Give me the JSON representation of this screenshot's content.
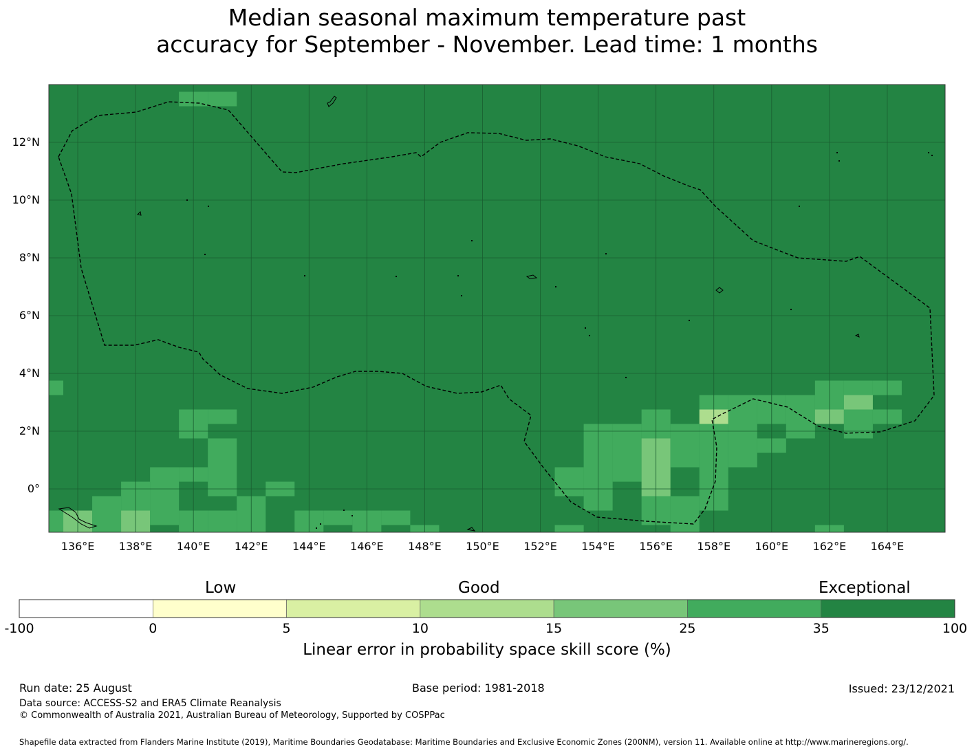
{
  "title_line1": "Median seasonal maximum temperature past",
  "title_line2": "accuracy for September - November. Lead time: 1 months",
  "map": {
    "lon_range": [
      135,
      166
    ],
    "lat_range": [
      -1.5,
      14
    ],
    "lon_labels": [
      "136°E",
      "138°E",
      "140°E",
      "142°E",
      "144°E",
      "146°E",
      "148°E",
      "150°E",
      "152°E",
      "154°E",
      "156°E",
      "158°E",
      "160°E",
      "162°E",
      "164°E"
    ],
    "lat_labels": [
      "12°N",
      "10°N",
      "8°N",
      "6°N",
      "4°N",
      "2°N",
      "0°"
    ],
    "colors": {
      "exceptional": "#238443",
      "c25_35": "#41ab5d",
      "c15_25": "#78c679",
      "c10_15": "#addd8e",
      "c5_10": "#d9f0a3",
      "c0_5": "#ffffcc",
      "below0": "#ffffff"
    },
    "patches": [
      {
        "lon": 140,
        "lat": 13.5,
        "cls": "c25_35"
      },
      {
        "lon": 141,
        "lat": 13.5,
        "cls": "c25_35"
      },
      {
        "lon": 135,
        "lat": 3.5,
        "cls": "c25_35"
      },
      {
        "lon": 140,
        "lat": 2.5,
        "cls": "c25_35"
      },
      {
        "lon": 141,
        "lat": 2.5,
        "cls": "c25_35"
      },
      {
        "lon": 140,
        "lat": 2.0,
        "cls": "c25_35"
      },
      {
        "lon": 141,
        "lat": 1.5,
        "cls": "c25_35"
      },
      {
        "lon": 141,
        "lat": 1.0,
        "cls": "c25_35"
      },
      {
        "lon": 140,
        "lat": 0.5,
        "cls": "c25_35"
      },
      {
        "lon": 141,
        "lat": 0.5,
        "cls": "c25_35"
      },
      {
        "lon": 139,
        "lat": 0.5,
        "cls": "c25_35"
      },
      {
        "lon": 138,
        "lat": 0.0,
        "cls": "c25_35"
      },
      {
        "lon": 139,
        "lat": 0.0,
        "cls": "c25_35"
      },
      {
        "lon": 141,
        "lat": 0.0,
        "cls": "c25_35"
      },
      {
        "lon": 143,
        "lat": 0.0,
        "cls": "c25_35"
      },
      {
        "lon": 137,
        "lat": -0.5,
        "cls": "c25_35"
      },
      {
        "lon": 138,
        "lat": -0.5,
        "cls": "c25_35"
      },
      {
        "lon": 139,
        "lat": -0.5,
        "cls": "c25_35"
      },
      {
        "lon": 142,
        "lat": -0.5,
        "cls": "c25_35"
      },
      {
        "lon": 135,
        "lat": -1.0,
        "cls": "c25_35"
      },
      {
        "lon": 136,
        "lat": -1.0,
        "cls": "c15_25"
      },
      {
        "lon": 137,
        "lat": -1.0,
        "cls": "c25_35"
      },
      {
        "lon": 138,
        "lat": -1.0,
        "cls": "c15_25"
      },
      {
        "lon": 139,
        "lat": -1.0,
        "cls": "c25_35"
      },
      {
        "lon": 140,
        "lat": -1.0,
        "cls": "c25_35"
      },
      {
        "lon": 141,
        "lat": -1.0,
        "cls": "c25_35"
      },
      {
        "lon": 142,
        "lat": -1.0,
        "cls": "c25_35"
      },
      {
        "lon": 144,
        "lat": -1.0,
        "cls": "c25_35"
      },
      {
        "lon": 145,
        "lat": -1.0,
        "cls": "c25_35"
      },
      {
        "lon": 146,
        "lat": -1.0,
        "cls": "c25_35"
      },
      {
        "lon": 147,
        "lat": -1.0,
        "cls": "c25_35"
      },
      {
        "lon": 135,
        "lat": -1.5,
        "cls": "c25_35"
      },
      {
        "lon": 136,
        "lat": -1.5,
        "cls": "c15_25"
      },
      {
        "lon": 137,
        "lat": -1.5,
        "cls": "c25_35"
      },
      {
        "lon": 138,
        "lat": -1.5,
        "cls": "c15_25"
      },
      {
        "lon": 140,
        "lat": -1.5,
        "cls": "c25_35"
      },
      {
        "lon": 141,
        "lat": -1.5,
        "cls": "c25_35"
      },
      {
        "lon": 142,
        "lat": -1.5,
        "cls": "c25_35"
      },
      {
        "lon": 144,
        "lat": -1.5,
        "cls": "c25_35"
      },
      {
        "lon": 146,
        "lat": -1.5,
        "cls": "c25_35"
      },
      {
        "lon": 148,
        "lat": -1.5,
        "cls": "c25_35"
      },
      {
        "lon": 153,
        "lat": -1.5,
        "cls": "c25_35"
      },
      {
        "lon": 157,
        "lat": -1.5,
        "cls": "c25_35"
      },
      {
        "lon": 162,
        "lat": -1.5,
        "cls": "c25_35"
      },
      {
        "lon": 156,
        "lat": 2.5,
        "cls": "c25_35"
      },
      {
        "lon": 158,
        "lat": 3.0,
        "cls": "c25_35"
      },
      {
        "lon": 159,
        "lat": 3.0,
        "cls": "c25_35"
      },
      {
        "lon": 160,
        "lat": 3.0,
        "cls": "c25_35"
      },
      {
        "lon": 161,
        "lat": 3.0,
        "cls": "c25_35"
      },
      {
        "lon": 162,
        "lat": 3.0,
        "cls": "c25_35"
      },
      {
        "lon": 162,
        "lat": 3.5,
        "cls": "c25_35"
      },
      {
        "lon": 163,
        "lat": 3.5,
        "cls": "c25_35"
      },
      {
        "lon": 164,
        "lat": 3.5,
        "cls": "c25_35"
      },
      {
        "lon": 163,
        "lat": 3.0,
        "cls": "c15_25"
      },
      {
        "lon": 158,
        "lat": 2.5,
        "cls": "c10_15"
      },
      {
        "lon": 159,
        "lat": 2.5,
        "cls": "c25_35"
      },
      {
        "lon": 160,
        "lat": 2.5,
        "cls": "c25_35"
      },
      {
        "lon": 161,
        "lat": 2.5,
        "cls": "c25_35"
      },
      {
        "lon": 162,
        "lat": 2.5,
        "cls": "c15_25"
      },
      {
        "lon": 163,
        "lat": 2.5,
        "cls": "c25_35"
      },
      {
        "lon": 164,
        "lat": 2.5,
        "cls": "c25_35"
      },
      {
        "lon": 163,
        "lat": 2.0,
        "cls": "c25_35"
      },
      {
        "lon": 154,
        "lat": 2.0,
        "cls": "c25_35"
      },
      {
        "lon": 155,
        "lat": 2.0,
        "cls": "c25_35"
      },
      {
        "lon": 156,
        "lat": 2.0,
        "cls": "c25_35"
      },
      {
        "lon": 157,
        "lat": 2.0,
        "cls": "c25_35"
      },
      {
        "lon": 158,
        "lat": 2.0,
        "cls": "c25_35"
      },
      {
        "lon": 159,
        "lat": 2.0,
        "cls": "c25_35"
      },
      {
        "lon": 161,
        "lat": 2.0,
        "cls": "c25_35"
      },
      {
        "lon": 154,
        "lat": 1.5,
        "cls": "c25_35"
      },
      {
        "lon": 155,
        "lat": 1.5,
        "cls": "c25_35"
      },
      {
        "lon": 156,
        "lat": 1.5,
        "cls": "c15_25"
      },
      {
        "lon": 157,
        "lat": 1.5,
        "cls": "c25_35"
      },
      {
        "lon": 158,
        "lat": 1.5,
        "cls": "c25_35"
      },
      {
        "lon": 159,
        "lat": 1.5,
        "cls": "c25_35"
      },
      {
        "lon": 160,
        "lat": 1.5,
        "cls": "c25_35"
      },
      {
        "lon": 154,
        "lat": 1.0,
        "cls": "c25_35"
      },
      {
        "lon": 155,
        "lat": 1.0,
        "cls": "c25_35"
      },
      {
        "lon": 156,
        "lat": 1.0,
        "cls": "c15_25"
      },
      {
        "lon": 157,
        "lat": 1.0,
        "cls": "c25_35"
      },
      {
        "lon": 158,
        "lat": 1.0,
        "cls": "c25_35"
      },
      {
        "lon": 159,
        "lat": 1.0,
        "cls": "c25_35"
      },
      {
        "lon": 153,
        "lat": 0.5,
        "cls": "c25_35"
      },
      {
        "lon": 154,
        "lat": 0.5,
        "cls": "c25_35"
      },
      {
        "lon": 155,
        "lat": 0.5,
        "cls": "c25_35"
      },
      {
        "lon": 156,
        "lat": 0.5,
        "cls": "c15_25"
      },
      {
        "lon": 158,
        "lat": 0.5,
        "cls": "c25_35"
      },
      {
        "lon": 153,
        "lat": 0.0,
        "cls": "c25_35"
      },
      {
        "lon": 154,
        "lat": 0.0,
        "cls": "c25_35"
      },
      {
        "lon": 156,
        "lat": 0.0,
        "cls": "c15_25"
      },
      {
        "lon": 158,
        "lat": 0.0,
        "cls": "c25_35"
      },
      {
        "lon": 154,
        "lat": -0.5,
        "cls": "c25_35"
      },
      {
        "lon": 156,
        "lat": -0.5,
        "cls": "c25_35"
      },
      {
        "lon": 157,
        "lat": -0.5,
        "cls": "c25_35"
      },
      {
        "lon": 158,
        "lat": -0.5,
        "cls": "c25_35"
      },
      {
        "lon": 156,
        "lat": -1.0,
        "cls": "c25_35"
      },
      {
        "lon": 157,
        "lat": -1.0,
        "cls": "c25_35"
      }
    ]
  },
  "colorbar": {
    "categories": [
      "Low",
      "Good",
      "Exceptional"
    ],
    "boundaries": [
      "-100",
      "0",
      "5",
      "10",
      "15",
      "25",
      "35",
      "100"
    ],
    "label": "Linear error in probability space skill score (%)"
  },
  "footer": {
    "run_date": "Run date: 25 August",
    "base_period": "Base period: 1981-2018",
    "issued": "Issued: 23/12/2021",
    "data_source": "Data source: ACCESS-S2 and ERA5 Climate Reanalysis",
    "copyright": "© Commonwealth of Australia 2021, Australian Bureau of Meteorology, Supported by COSPPac",
    "shapefile": "Shapefile data extracted from Flanders Marine Institute (2019), Maritime Boundaries Geodatabase: Maritime Boundaries and Exclusive Economic Zones (200NM), version 11. Available online at http://www.marineregions.org/."
  }
}
